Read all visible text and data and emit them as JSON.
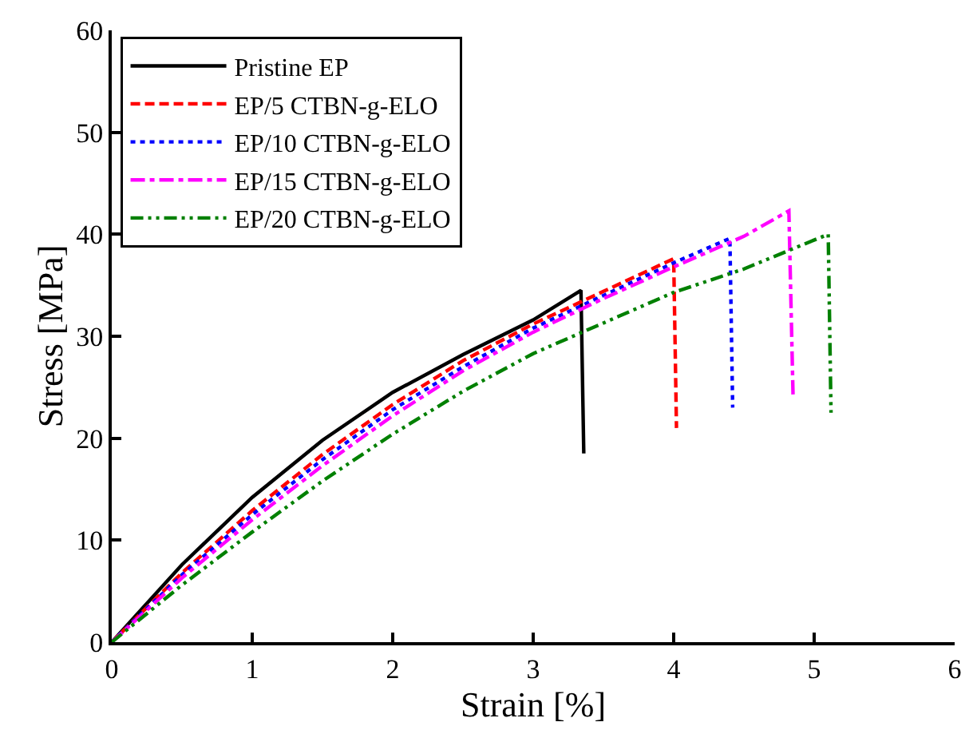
{
  "chart_data": {
    "type": "line",
    "xlabel": "Strain [%]",
    "ylabel": "Stress [MPa]",
    "xlim": [
      0,
      6
    ],
    "xticks": [
      0,
      1,
      2,
      3,
      4,
      5,
      6
    ],
    "ylim": [
      0,
      60
    ],
    "yticks": [
      0,
      10,
      20,
      30,
      40,
      50,
      60
    ],
    "legend": "top left",
    "marker": "none",
    "series": [
      {
        "name": "Pristine EP",
        "color": "#000000",
        "line_style": "solid",
        "x": [
          0,
          0.5,
          1,
          1.5,
          2,
          2.5,
          3,
          3.34,
          3.36
        ],
        "values": [
          0,
          7.6,
          14.2,
          19.8,
          24.5,
          28.2,
          31.6,
          34.5,
          18.5
        ]
      },
      {
        "name": "EP/5 CTBN-g-ELO",
        "color": "#ff0000",
        "line_style": "dashed",
        "x": [
          0,
          0.5,
          1,
          1.5,
          2,
          2.5,
          3,
          3.5,
          4.0,
          4.02
        ],
        "values": [
          0,
          6.8,
          12.9,
          18.4,
          23.3,
          27.6,
          31.2,
          34.4,
          37.6,
          21
        ]
      },
      {
        "name": "EP/10 CTBN-g-ELO",
        "color": "#0000ff",
        "line_style": "dotted",
        "x": [
          0,
          0.5,
          1,
          1.5,
          2,
          2.5,
          3,
          3.5,
          4,
          4.4,
          4.42
        ],
        "values": [
          0,
          6.6,
          12.5,
          17.9,
          22.8,
          27.0,
          30.8,
          34.0,
          37.2,
          39.6,
          23
        ]
      },
      {
        "name": "EP/15 CTBN-g-ELO",
        "color": "#ff00ff",
        "line_style": "dashdot",
        "x": [
          0,
          0.5,
          1,
          1.5,
          2,
          2.5,
          3,
          3.5,
          4,
          4.5,
          4.82,
          4.85
        ],
        "values": [
          0,
          6.3,
          12.0,
          17.3,
          22.2,
          26.6,
          30.4,
          33.7,
          36.8,
          39.8,
          42.3,
          24
        ]
      },
      {
        "name": "EP/20 CTBN-g-ELO",
        "color": "#008000",
        "line_style": "dashdotdot",
        "x": [
          0,
          0.5,
          1,
          1.5,
          2,
          2.5,
          3,
          3.5,
          4,
          4.5,
          5.1,
          5.12
        ],
        "values": [
          0,
          5.6,
          10.8,
          15.8,
          20.4,
          24.6,
          28.3,
          31.3,
          34.3,
          36.6,
          40.0,
          22.5
        ]
      }
    ]
  }
}
